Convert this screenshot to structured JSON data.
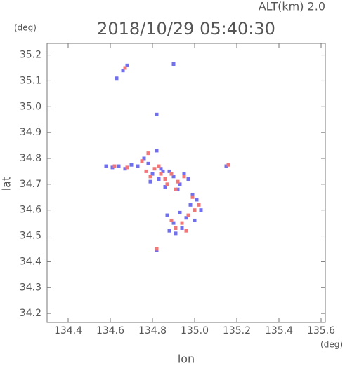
{
  "chart_data": {
    "type": "scatter",
    "title": "2018/10/29 05:40:30",
    "annotation": "ALT(km) 2.0",
    "x_label": "lon",
    "y_label": "lat",
    "x_unit": "(deg)",
    "y_unit": "(deg)",
    "xlim": [
      134.3,
      135.62
    ],
    "ylim": [
      34.165,
      35.245
    ],
    "xticks": [
      134.4,
      134.6,
      134.8,
      {
        "value": 135.0,
        "label": "135.0"
      },
      135.2,
      135.4,
      135.6
    ],
    "yticks": [
      34.2,
      34.3,
      34.4,
      34.5,
      34.6,
      34.7,
      34.8,
      34.9,
      {
        "value": 35.0,
        "label": "35.0"
      },
      35.1,
      35.2
    ],
    "series": [
      {
        "color": "#7070ee",
        "x": [
          134.58,
          134.61,
          134.64,
          134.67,
          134.7,
          134.73,
          134.76,
          134.78,
          134.8,
          134.83,
          134.85,
          134.79,
          134.82,
          134.88,
          134.9,
          134.93,
          134.95,
          134.97,
          134.86,
          134.84,
          134.99,
          135.01,
          135.03,
          134.98,
          134.96,
          134.93,
          134.9,
          134.88,
          134.91,
          134.94,
          134.82,
          134.66,
          134.68,
          134.63,
          134.82,
          134.9,
          135.15,
          134.87,
          135.0,
          134.92
        ],
        "y": [
          34.77,
          34.765,
          34.77,
          34.76,
          34.775,
          34.77,
          34.8,
          34.78,
          34.74,
          34.72,
          34.75,
          34.71,
          34.83,
          34.75,
          34.73,
          34.7,
          34.74,
          34.72,
          34.69,
          34.76,
          34.66,
          34.64,
          34.6,
          34.62,
          34.57,
          34.59,
          34.55,
          34.52,
          34.51,
          34.53,
          34.445,
          35.14,
          35.16,
          35.11,
          34.97,
          35.165,
          34.77,
          34.58,
          34.56,
          34.68
        ]
      },
      {
        "color": "#f07878",
        "x": [
          134.62,
          134.68,
          134.75,
          134.78,
          134.81,
          134.84,
          134.79,
          134.86,
          134.89,
          134.92,
          134.95,
          134.91,
          134.99,
          135.02,
          135.0,
          134.97,
          134.94,
          134.91,
          134.96,
          134.89,
          134.67,
          134.82,
          135.16,
          134.83,
          134.77,
          134.87
        ],
        "y": [
          34.77,
          34.765,
          34.79,
          34.82,
          34.76,
          34.74,
          34.73,
          34.72,
          34.74,
          34.71,
          34.73,
          34.68,
          34.65,
          34.62,
          34.6,
          34.58,
          34.55,
          34.53,
          34.52,
          34.56,
          35.15,
          34.45,
          34.775,
          34.77,
          34.75,
          34.7
        ]
      }
    ]
  }
}
